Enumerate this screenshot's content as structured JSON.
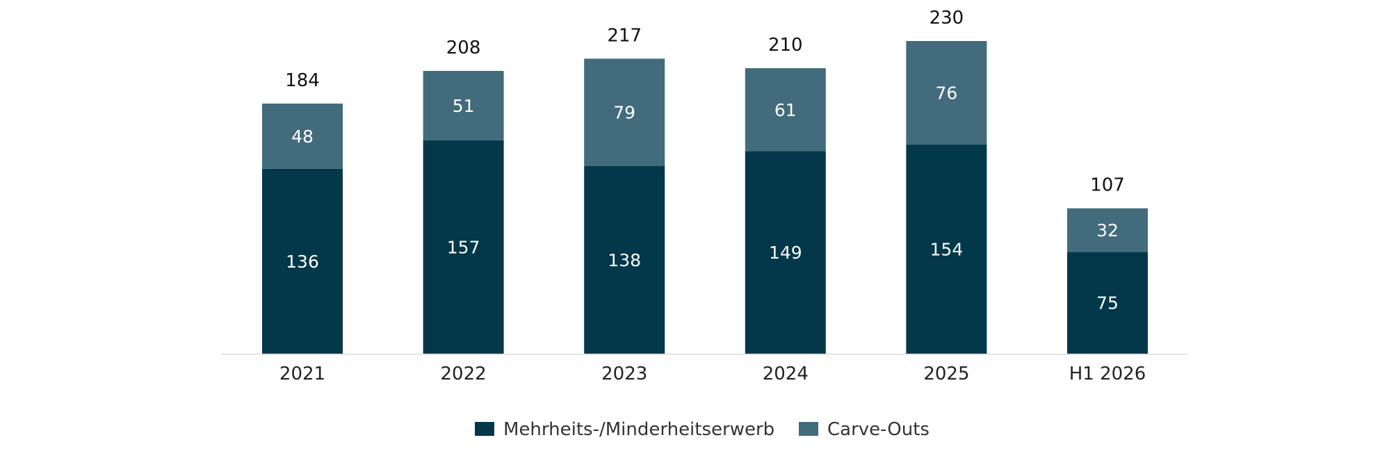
{
  "chart_data": {
    "type": "bar",
    "stacked": true,
    "categories": [
      "2021",
      "2022",
      "2023",
      "2024",
      "2025",
      "H1 2026"
    ],
    "series": [
      {
        "name": "Mehrheits-/Minderheitserwerb",
        "values": [
          136,
          157,
          138,
          149,
          154,
          75
        ],
        "color": "#023849"
      },
      {
        "name": "Carve-Outs",
        "values": [
          48,
          51,
          79,
          61,
          76,
          32
        ],
        "color": "#426b7b"
      }
    ],
    "totals": [
      184,
      208,
      217,
      210,
      230,
      107
    ],
    "ylim": [
      0,
      230
    ],
    "grid": false,
    "legend": "bottom",
    "axis_color": "#d9d9d9"
  }
}
